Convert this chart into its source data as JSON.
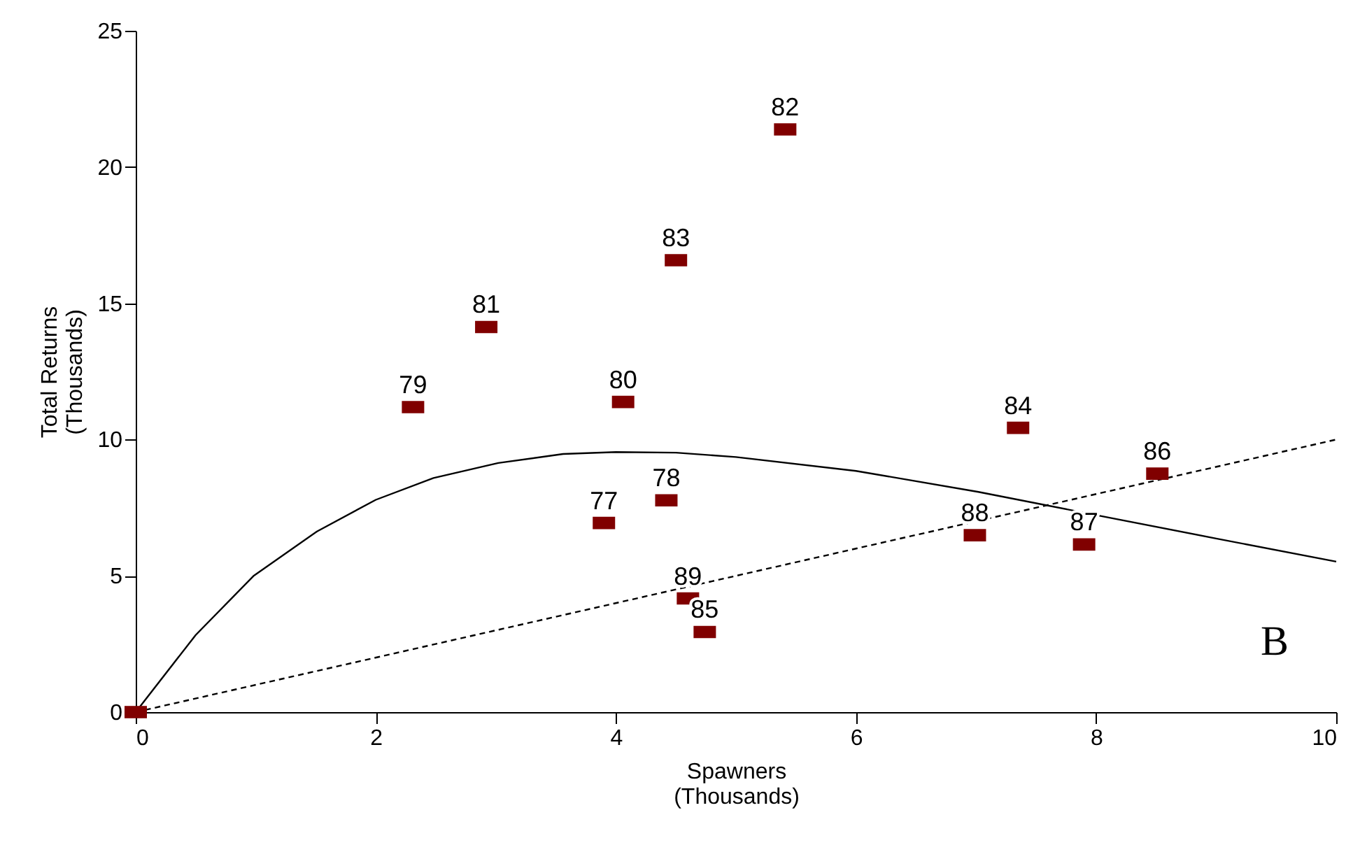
{
  "chart_data": {
    "type": "scatter",
    "xlabel": "Spawners\n(Thousands)",
    "ylabel": "Total Returns\n(Thousands)",
    "xlim": [
      0,
      10
    ],
    "xticks": [
      0,
      2,
      4,
      6,
      8,
      10
    ],
    "ylim": [
      0,
      25
    ],
    "yticks": [
      0,
      5,
      10,
      15,
      20,
      25
    ],
    "grid": false,
    "annotations": [
      "B",
      {
        "text": "77",
        "x": 3.9,
        "y": 6.94
      },
      {
        "text": "78",
        "x": 4.42,
        "y": 7.77
      },
      {
        "text": "79",
        "x": 2.31,
        "y": 11.19
      },
      {
        "text": "80",
        "x": 4.06,
        "y": 11.38
      },
      {
        "text": "81",
        "x": 2.92,
        "y": 14.13
      },
      {
        "text": "82",
        "x": 5.41,
        "y": 21.38
      },
      {
        "text": "83",
        "x": 4.5,
        "y": 16.58
      },
      {
        "text": "84",
        "x": 7.35,
        "y": 10.43
      },
      {
        "text": "85",
        "x": 4.74,
        "y": 2.94
      },
      {
        "text": "86",
        "x": 8.51,
        "y": 8.75
      },
      {
        "text": "87",
        "x": 7.9,
        "y": 6.15
      },
      {
        "text": "88",
        "x": 6.99,
        "y": 6.49
      },
      {
        "text": "89",
        "x": 4.6,
        "y": 4.17
      }
    ],
    "series": [
      {
        "type": "line",
        "color": "#000000",
        "line_style": "solid",
        "marker": "none",
        "x": [
          0,
          0.5,
          0.98,
          1.51,
          2.0,
          2.48,
          3.02,
          3.56,
          4.0,
          4.5,
          5.0,
          6.0,
          7.02,
          8.0,
          9.0,
          10.0
        ],
        "values": [
          0,
          2.83,
          4.99,
          6.63,
          7.79,
          8.59,
          9.14,
          9.47,
          9.54,
          9.52,
          9.36,
          8.85,
          8.08,
          7.23,
          6.37,
          5.52
        ]
      },
      {
        "type": "line",
        "color": "#000000",
        "line_style": "dashed",
        "marker": "none",
        "x": [
          0,
          10
        ],
        "values": [
          0,
          10
        ]
      },
      {
        "color": "#800000",
        "marker": "square",
        "x": [
          0,
          3.9,
          4.42,
          2.31,
          4.06,
          2.92,
          5.41,
          4.5,
          7.35,
          4.74,
          8.51,
          7.9,
          6.99,
          4.6
        ],
        "values": [
          0,
          6.94,
          7.77,
          11.19,
          11.38,
          14.13,
          21.38,
          16.58,
          10.43,
          2.94,
          8.75,
          6.15,
          6.49,
          4.17
        ]
      }
    ]
  }
}
